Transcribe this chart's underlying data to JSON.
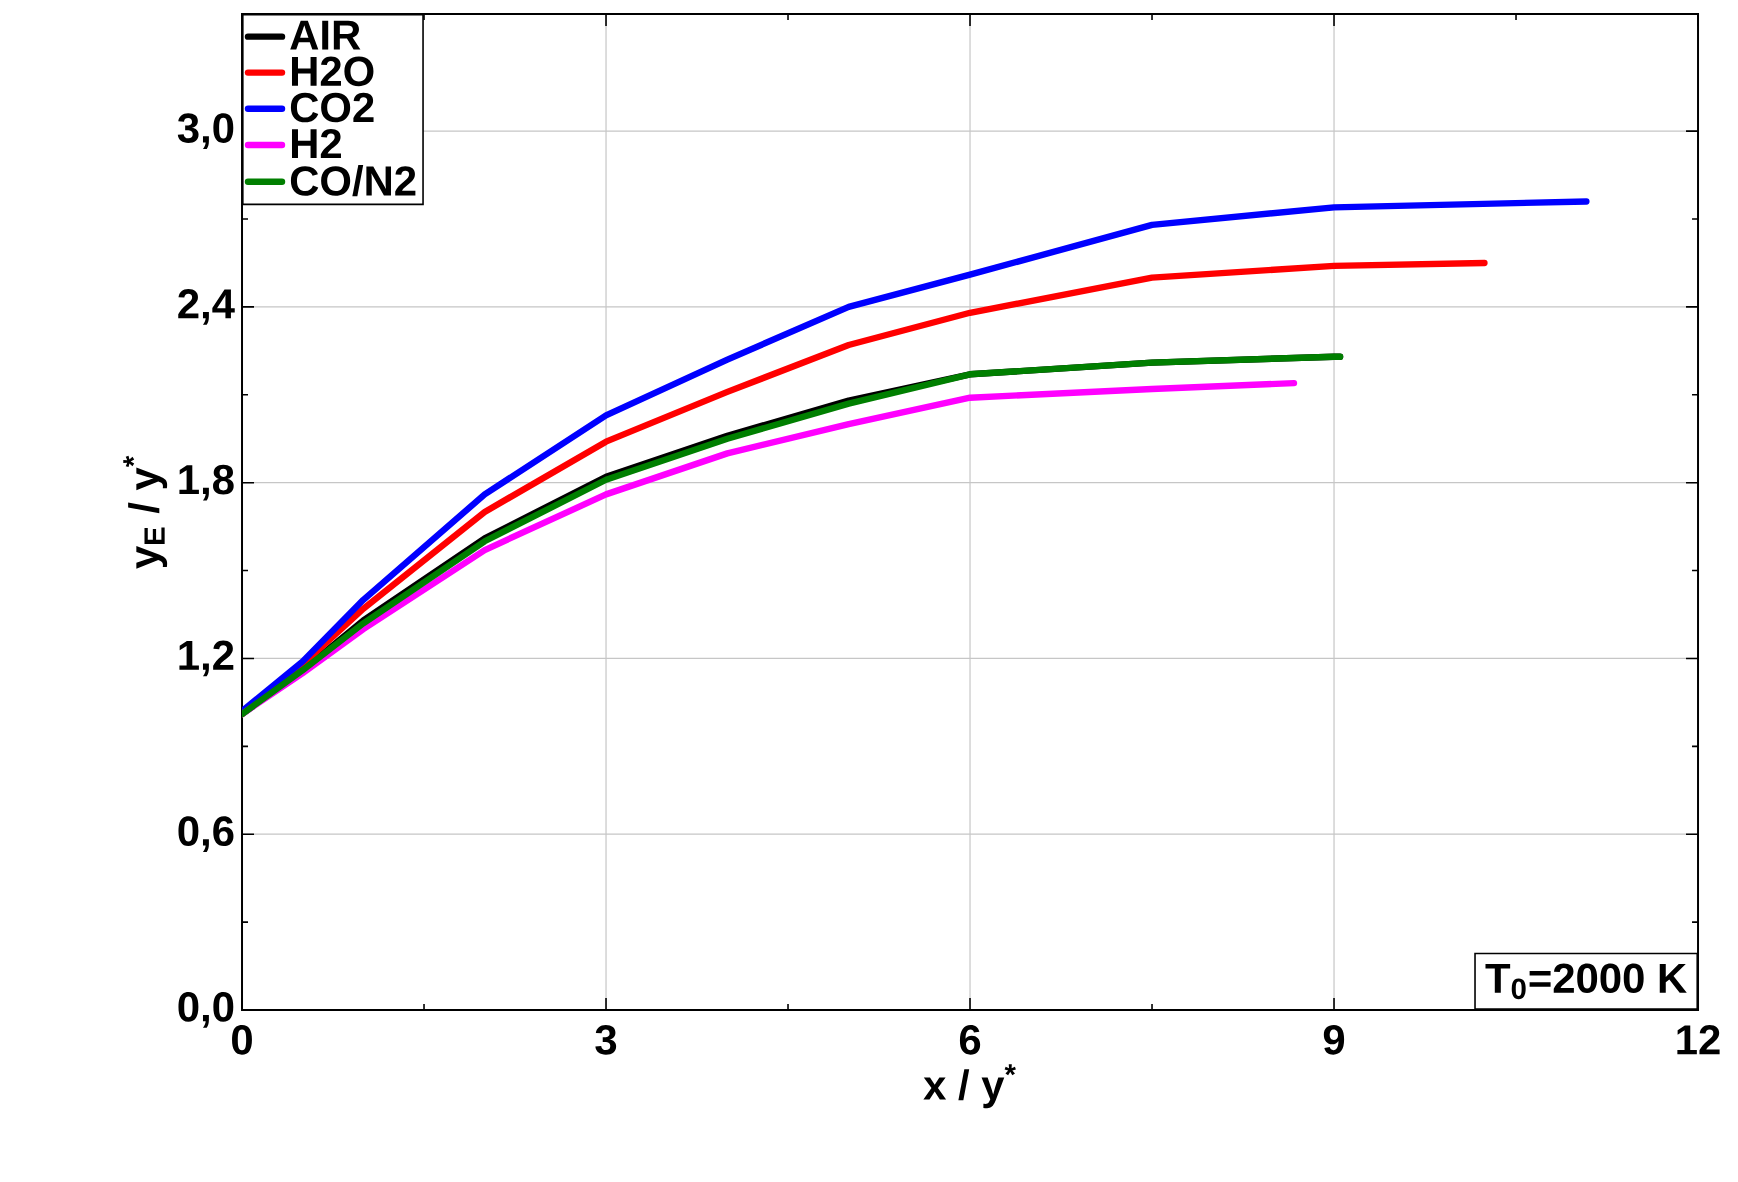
{
  "chart_data": {
    "type": "line",
    "xlabel": "x / y$^{*}$",
    "ylabel": "y$_{E}$ / y$^{*}$",
    "annotations": [
      "T$_{0}$=2000 K"
    ],
    "xlim": [
      0,
      12
    ],
    "ylim": [
      0,
      3.4
    ],
    "xticks": [
      0,
      3,
      6,
      9,
      12
    ],
    "yticks": [
      {
        "value": 0,
        "label": "0,0"
      },
      {
        "value": 0.6,
        "label": "0,6"
      },
      {
        "value": 1.2,
        "label": "1,2"
      },
      {
        "value": 1.8,
        "label": "1,8"
      },
      {
        "value": 2.4,
        "label": "2,4"
      },
      {
        "value": 3.0,
        "label": "3,0"
      }
    ],
    "grid": true,
    "legend": "top left",
    "marker": "none",
    "line_style": "solid",
    "series": [
      {
        "name": "AIR",
        "color": "#000000",
        "x": [
          0,
          0.5,
          1,
          2,
          3,
          4,
          5,
          6,
          7.5,
          9,
          9.05
        ],
        "values": [
          1.01,
          1.16,
          1.33,
          1.61,
          1.82,
          1.96,
          2.08,
          2.17,
          2.21,
          2.23,
          2.23
        ]
      },
      {
        "name": "H2O",
        "color": "#ff0000",
        "x": [
          0,
          0.5,
          1,
          2,
          3,
          4,
          5,
          6,
          7.5,
          9,
          10.24
        ],
        "values": [
          1.01,
          1.18,
          1.37,
          1.7,
          1.94,
          2.11,
          2.27,
          2.38,
          2.5,
          2.54,
          2.55
        ]
      },
      {
        "name": "CO2",
        "color": "#0000ff",
        "x": [
          0,
          0.5,
          1,
          2,
          3,
          4,
          5,
          6,
          7.5,
          9,
          11.08
        ],
        "values": [
          1.02,
          1.19,
          1.4,
          1.76,
          2.03,
          2.22,
          2.4,
          2.51,
          2.68,
          2.74,
          2.76
        ]
      },
      {
        "name": "H2",
        "color": "#ff00ff",
        "x": [
          0,
          0.5,
          1,
          2,
          3,
          4,
          5,
          6,
          7.5,
          8.67
        ],
        "values": [
          1.01,
          1.15,
          1.3,
          1.57,
          1.76,
          1.9,
          2.0,
          2.09,
          2.12,
          2.14
        ]
      },
      {
        "name": "CO/N2",
        "color": "#007f00",
        "x": [
          0,
          0.5,
          1,
          2,
          3,
          4,
          5,
          6,
          7.5,
          9,
          9.05
        ],
        "values": [
          1.01,
          1.16,
          1.32,
          1.6,
          1.81,
          1.95,
          2.07,
          2.17,
          2.21,
          2.23,
          2.23
        ]
      }
    ]
  }
}
